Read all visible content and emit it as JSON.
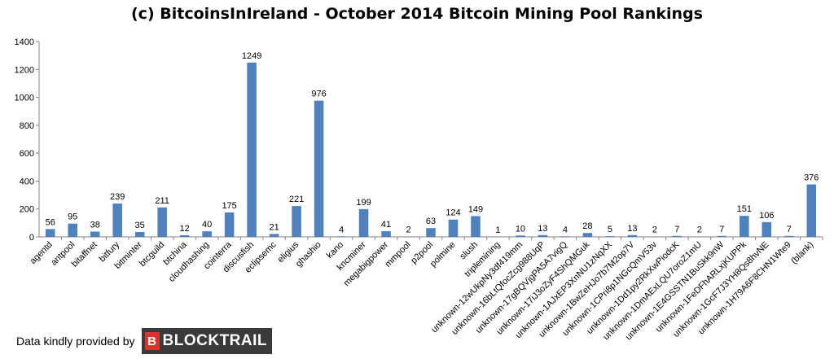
{
  "chart_data": {
    "type": "bar",
    "title": "(c) BitcoinsInIreland - October 2014 Bitcoin Mining Pool Rankings",
    "xlabel": "",
    "ylabel": "",
    "ylim": [
      0,
      1400
    ],
    "yticks": [
      0,
      200,
      400,
      600,
      800,
      1000,
      1200,
      1400
    ],
    "grid": false,
    "legend": "none",
    "bar_color": "#4f81bd",
    "categories": [
      "agentd",
      "antpool",
      "bitaffnet",
      "bitfury",
      "bitminter",
      "btcguild",
      "btchina",
      "cloudhashing",
      "cointerra",
      "discusfish",
      "eclipsemc",
      "eligius",
      "ghashio",
      "kano",
      "kncminer",
      "megabigpower",
      "mmpool",
      "p2pool",
      "polmine",
      "slush",
      "triplemining",
      "unknown-12wUkpNy3df419mm",
      "unknown-16bLtQfocZcg988UqP",
      "unknown-17gBQVjgPA5A7vigQ",
      "unknown-17iJ3oZyF4ShQMGuk",
      "unknown-1AJxEP3XnNU1zNqXX",
      "unknown-1BwZeHJo7b7M2op7V",
      "unknown-1CPri8p1NGcQmV53v",
      "unknown-1Dd1py2RkXwPiodcK",
      "unknown-1DmAExLQU7oroZ1mU",
      "unknown-1E4GSSTN1BuSkk9nW",
      "unknown-1FeDFhARLxjKUPPk",
      "unknown-1GcF7J3YH8Qs8hvNE",
      "unknown-1H79A6F8CHN1Wte9",
      "(blank)"
    ],
    "values": [
      56,
      95,
      38,
      239,
      35,
      211,
      12,
      40,
      175,
      1249,
      21,
      221,
      976,
      4,
      199,
      41,
      2,
      63,
      124,
      149,
      1,
      10,
      13,
      4,
      28,
      5,
      13,
      2,
      7,
      2,
      7,
      151,
      106,
      7,
      376
    ]
  },
  "footer": {
    "credit_text": "Data kindly provided by",
    "brand_mark": "B",
    "brand_name": "BLOCKTRAIL"
  }
}
